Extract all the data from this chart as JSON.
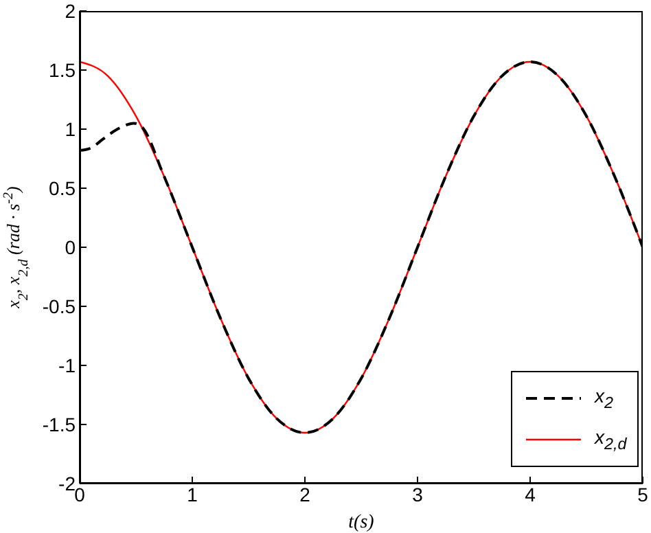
{
  "chart_data": {
    "type": "line",
    "xlabel": "t(s)",
    "ylabel": "x$_{2}$, x$_{2,d}$  (rad · s$^{-2}$)",
    "xlim": [
      0,
      5
    ],
    "xticks": [
      0,
      1,
      2,
      3,
      4,
      5
    ],
    "ylim": [
      -2,
      2
    ],
    "yticks": [
      -2,
      -1.5,
      -1,
      -0.5,
      0,
      0.5,
      1,
      1.5,
      2
    ],
    "grid": false,
    "legend": "bottom right",
    "series": [
      {
        "name": "x$_{2}$",
        "color": "#000000",
        "line_style": "dashed",
        "x": [
          0,
          0.1,
          0.2,
          0.3,
          0.4,
          0.48,
          0.55,
          0.75,
          1,
          1.25,
          1.5,
          1.75,
          2,
          2.25,
          2.5,
          2.75,
          3,
          3.25,
          3.5,
          3.75,
          4,
          4.25,
          4.5,
          4.75,
          5
        ],
        "values": [
          0.82,
          0.84,
          0.91,
          0.98,
          1.03,
          1.05,
          1.02,
          0.6,
          0,
          -0.6,
          -1.11,
          -1.45,
          -1.57,
          -1.45,
          -1.11,
          -0.6,
          0,
          0.6,
          1.11,
          1.45,
          1.57,
          1.45,
          1.11,
          0.6,
          0
        ]
      },
      {
        "name": "x$_{2,d}$",
        "color": "#ff0000",
        "line_style": "solid",
        "x": [
          0,
          0.25,
          0.5,
          0.75,
          1,
          1.25,
          1.5,
          1.75,
          2,
          2.25,
          2.5,
          2.75,
          3,
          3.25,
          3.5,
          3.75,
          4,
          4.25,
          4.5,
          4.75,
          5
        ],
        "values": [
          1.57,
          1.45,
          1.11,
          0.6,
          0,
          -0.6,
          -1.11,
          -1.45,
          -1.57,
          -1.45,
          -1.11,
          -0.6,
          0,
          0.6,
          1.11,
          1.45,
          1.57,
          1.45,
          1.11,
          0.6,
          0
        ]
      }
    ]
  }
}
